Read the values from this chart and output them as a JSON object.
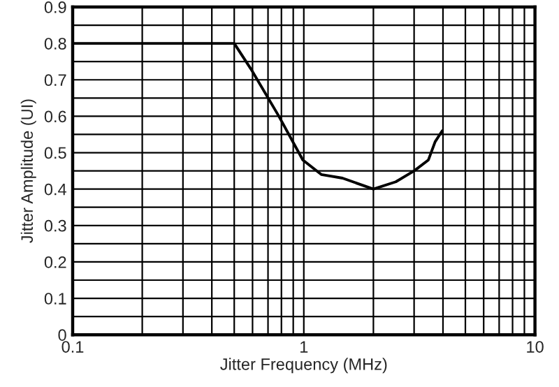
{
  "chart_data": {
    "type": "line",
    "xlabel": "Jitter Frequency (MHz)",
    "ylabel": "Jitter Amplitude (UI)",
    "log": "x",
    "grid": true,
    "line_style": "solid",
    "color": "#000000",
    "xlim": [
      0.1,
      10
    ],
    "xticks": [
      0.1,
      {
        "value": 0.2,
        "label": null
      },
      {
        "value": 0.3,
        "label": null
      },
      {
        "value": 0.4,
        "label": null
      },
      {
        "value": 0.5,
        "label": null
      },
      {
        "value": 0.6,
        "label": null
      },
      {
        "value": 0.7,
        "label": null
      },
      {
        "value": 0.8,
        "label": null
      },
      {
        "value": 0.9,
        "label": null
      },
      1,
      {
        "value": 2,
        "label": null
      },
      {
        "value": 3,
        "label": null
      },
      {
        "value": 4,
        "label": null
      },
      {
        "value": 5,
        "label": null
      },
      {
        "value": 6,
        "label": null
      },
      {
        "value": 7,
        "label": null
      },
      {
        "value": 8,
        "label": null
      },
      {
        "value": 9,
        "label": null
      },
      10
    ],
    "ylim": [
      0,
      0.9
    ],
    "yticks": [
      0,
      {
        "value": 0.05,
        "label": null
      },
      0.1,
      {
        "value": 0.15,
        "label": null
      },
      0.2,
      {
        "value": 0.25,
        "label": null
      },
      0.3,
      {
        "value": 0.35,
        "label": null
      },
      0.4,
      {
        "value": 0.45,
        "label": null
      },
      0.5,
      {
        "value": 0.55,
        "label": null
      },
      0.6,
      {
        "value": 0.65,
        "label": null
      },
      0.7,
      {
        "value": 0.75,
        "label": null
      },
      0.8,
      {
        "value": 0.85,
        "label": null
      },
      0.9
    ],
    "x": [
      0.1,
      0.5,
      0.59,
      0.78,
      0.99,
      1.19,
      1.47,
      2.0,
      2.5,
      3.0,
      3.46,
      3.7,
      3.97
    ],
    "values": [
      0.8,
      0.8,
      0.73,
      0.6,
      0.48,
      0.44,
      0.43,
      0.4,
      0.42,
      0.45,
      0.48,
      0.53,
      0.56
    ]
  }
}
